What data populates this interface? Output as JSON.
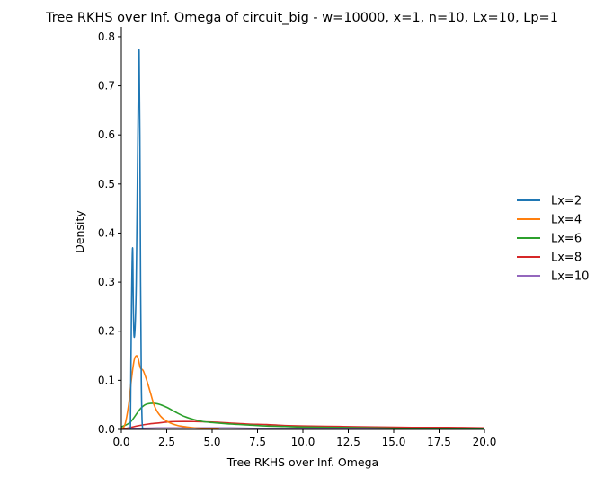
{
  "chart_data": {
    "type": "line",
    "title": "Tree RKHS over Inf. Omega of circuit_big - w=10000, x=1, n=10, Lx=10, Lp=1",
    "xlabel": "Tree RKHS over Inf. Omega",
    "ylabel": "Density",
    "xlim": [
      0,
      20
    ],
    "ylim": [
      0,
      0.82
    ],
    "xticks": [
      "0.0",
      "2.5",
      "5.0",
      "7.5",
      "10.0",
      "12.5",
      "15.0",
      "17.5",
      "20.0"
    ],
    "xtick_values": [
      0,
      2.5,
      5,
      7.5,
      10,
      12.5,
      15,
      17.5,
      20
    ],
    "yticks": [
      "0.0",
      "0.1",
      "0.2",
      "0.3",
      "0.4",
      "0.5",
      "0.6",
      "0.7",
      "0.8"
    ],
    "ytick_values": [
      0,
      0.1,
      0.2,
      0.3,
      0.4,
      0.5,
      0.6,
      0.7,
      0.8
    ],
    "grid": false,
    "legend_position": "right",
    "series": [
      {
        "name": "Lx=2",
        "color": "#1f77b4",
        "x": [
          0.5,
          0.56,
          0.62,
          0.66,
          0.7,
          0.76,
          0.82,
          0.88,
          0.94,
          0.98,
          1.02,
          1.06,
          1.1,
          1.14,
          1.18
        ],
        "y": [
          0.0,
          0.25,
          0.37,
          0.25,
          0.19,
          0.21,
          0.3,
          0.5,
          0.7,
          0.77,
          0.6,
          0.3,
          0.1,
          0.02,
          0.0
        ]
      },
      {
        "name": "Lx=4",
        "color": "#ff7f0e",
        "x": [
          0,
          0.2,
          0.4,
          0.55,
          0.7,
          0.82,
          0.92,
          1.05,
          1.2,
          1.4,
          1.6,
          1.8,
          2.0,
          2.3,
          2.7,
          3.1,
          3.6,
          4.1,
          4.6,
          5.0,
          5.4
        ],
        "y": [
          0.0,
          0.01,
          0.05,
          0.1,
          0.14,
          0.15,
          0.145,
          0.125,
          0.12,
          0.1,
          0.075,
          0.05,
          0.035,
          0.022,
          0.013,
          0.008,
          0.005,
          0.003,
          0.002,
          0.001,
          0.0
        ]
      },
      {
        "name": "Lx=6",
        "color": "#2ca02c",
        "x": [
          0,
          0.5,
          1.0,
          1.3,
          1.6,
          2.0,
          2.5,
          3.0,
          3.5,
          4.0,
          4.5,
          5.0,
          6.0,
          7.0,
          8.0,
          9.0,
          10.0,
          12.0,
          14.0,
          16.0,
          18.0,
          20.0
        ],
        "y": [
          0.005,
          0.015,
          0.04,
          0.05,
          0.053,
          0.052,
          0.045,
          0.035,
          0.026,
          0.02,
          0.016,
          0.014,
          0.011,
          0.009,
          0.007,
          0.006,
          0.005,
          0.004,
          0.003,
          0.002,
          0.002,
          0.001
        ]
      },
      {
        "name": "Lx=8",
        "color": "#d62728",
        "x": [
          0,
          0.5,
          1.0,
          1.5,
          2.0,
          2.5,
          3.0,
          4.0,
          5.0,
          6.0,
          7.0,
          8.0,
          9.0,
          10.0,
          12.0,
          14.0,
          16.0,
          18.0,
          20.0
        ],
        "y": [
          0.0,
          0.004,
          0.008,
          0.011,
          0.013,
          0.015,
          0.016,
          0.016,
          0.015,
          0.013,
          0.011,
          0.01,
          0.008,
          0.007,
          0.006,
          0.005,
          0.004,
          0.004,
          0.003
        ]
      },
      {
        "name": "Lx=10",
        "color": "#9467bd",
        "x": [
          0,
          0.5,
          1.0,
          2.0,
          3.0,
          4.0,
          5.0,
          6.0,
          8.0,
          10.0,
          12.0,
          14.0,
          16.0,
          18.0,
          20.0
        ],
        "y": [
          0.0,
          0.001,
          0.002,
          0.003,
          0.003,
          0.003,
          0.003,
          0.003,
          0.002,
          0.002,
          0.002,
          0.001,
          0.001,
          0.001,
          0.001
        ]
      }
    ]
  }
}
